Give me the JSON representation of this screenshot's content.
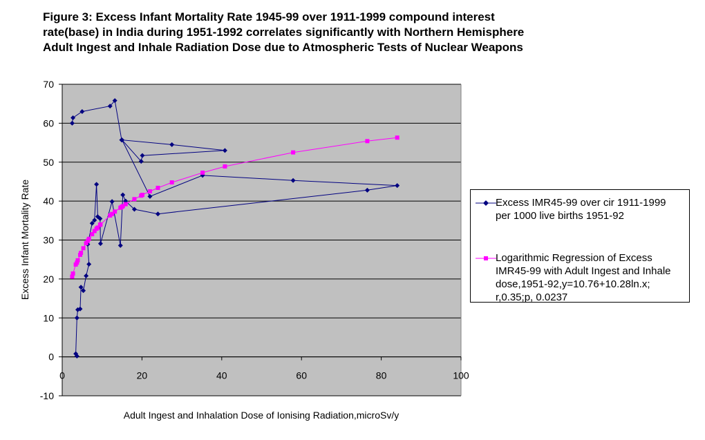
{
  "title_lines": [
    "Figure 3: Excess Infant Mortality Rate 1945-99 over 1911-1999 compound interest",
    "rate(base) in India during 1951-1992 correlates significantly with Northern Hemisphere",
    "Adult Ingest and Inhale Radiation Dose due to Atmospheric Tests of Nuclear Weapons"
  ],
  "chart_data": {
    "type": "scatter",
    "title": "Figure 3: Excess Infant Mortality Rate 1945-99 over 1911-1999 compound interest rate(base) in India during 1951-1992 correlates significantly with Northern Hemisphere Adult Ingest and Inhale Radiation Dose due to Atmospheric Tests of Nuclear Weapons",
    "xlabel": "Adult Ingest and Inhalation Dose of Ionising Radiation,microSv/y",
    "ylabel": "Excess Infant Mortality Rate",
    "xlim": [
      0,
      100
    ],
    "ylim": [
      -10,
      70
    ],
    "xticks": [
      0,
      20,
      40,
      60,
      80,
      100
    ],
    "yticks": [
      -10,
      0,
      10,
      20,
      30,
      40,
      50,
      60,
      70
    ],
    "grid": "horizontal",
    "plot_background": "#c0c0c0",
    "legend_position": "right",
    "series": [
      {
        "name": "Excess IMR45-99 over cir 1911-1999 per 1000 live births 1951-92",
        "color": "#000080",
        "marker": "diamond",
        "points": [
          [
            2.5,
            60.0
          ],
          [
            2.7,
            61.4
          ],
          [
            5.0,
            63.0
          ],
          [
            12.0,
            64.4
          ],
          [
            13.2,
            65.8
          ],
          [
            14.9,
            55.7
          ],
          [
            27.5,
            54.5
          ],
          [
            40.8,
            53.0
          ],
          [
            20.1,
            51.7
          ],
          [
            19.8,
            50.2
          ],
          [
            15.0,
            55.7
          ],
          [
            22.0,
            41.2
          ],
          [
            35.2,
            46.6
          ],
          [
            57.9,
            45.3
          ],
          [
            84.0,
            44.0
          ],
          [
            76.5,
            42.8
          ],
          [
            24.0,
            36.7
          ],
          [
            18.1,
            37.9
          ],
          [
            15.9,
            40.0
          ],
          [
            15.2,
            41.6
          ],
          [
            14.6,
            28.6
          ],
          [
            12.5,
            39.9
          ],
          [
            9.6,
            29.1
          ],
          [
            9.5,
            35.5
          ],
          [
            8.9,
            36.0
          ],
          [
            8.6,
            44.3
          ],
          [
            8.1,
            35.1
          ],
          [
            7.5,
            34.3
          ],
          [
            6.4,
            28.9
          ],
          [
            6.7,
            23.8
          ],
          [
            6.0,
            20.8
          ],
          [
            5.3,
            17.0
          ],
          [
            4.7,
            17.9
          ],
          [
            4.5,
            12.3
          ],
          [
            3.9,
            12.1
          ],
          [
            3.7,
            10.0
          ],
          [
            3.4,
            0.8
          ],
          [
            3.7,
            0.2
          ]
        ]
      },
      {
        "name": "Logarithmic Regression of Excess IMR45-99 with Adult Ingest and Inhale dose,1951-92,y=10.76+10.28ln.x; r,0.35;p, 0.0237",
        "color": "#ff00ff",
        "marker": "square",
        "points": [
          [
            2.5,
            20.6
          ],
          [
            2.7,
            21.4
          ],
          [
            3.4,
            23.7
          ],
          [
            3.7,
            24.2
          ],
          [
            3.9,
            24.8
          ],
          [
            4.5,
            26.2
          ],
          [
            4.7,
            26.7
          ],
          [
            5.3,
            27.9
          ],
          [
            6.0,
            29.2
          ],
          [
            6.4,
            29.8
          ],
          [
            6.7,
            30.3
          ],
          [
            7.5,
            31.5
          ],
          [
            8.1,
            32.3
          ],
          [
            8.6,
            32.9
          ],
          [
            8.9,
            33.2
          ],
          [
            9.5,
            33.9
          ],
          [
            9.6,
            34.0
          ],
          [
            12.0,
            36.3
          ],
          [
            12.5,
            36.7
          ],
          [
            13.2,
            37.3
          ],
          [
            14.6,
            38.3
          ],
          [
            14.9,
            38.5
          ],
          [
            15.2,
            38.7
          ],
          [
            15.9,
            39.2
          ],
          [
            18.1,
            40.5
          ],
          [
            19.8,
            41.4
          ],
          [
            20.1,
            41.6
          ],
          [
            22.0,
            42.5
          ],
          [
            24.0,
            43.4
          ],
          [
            27.5,
            44.8
          ],
          [
            35.2,
            47.3
          ],
          [
            40.8,
            48.9
          ],
          [
            57.9,
            52.5
          ],
          [
            76.5,
            55.4
          ],
          [
            84.0,
            56.3
          ]
        ]
      }
    ]
  }
}
